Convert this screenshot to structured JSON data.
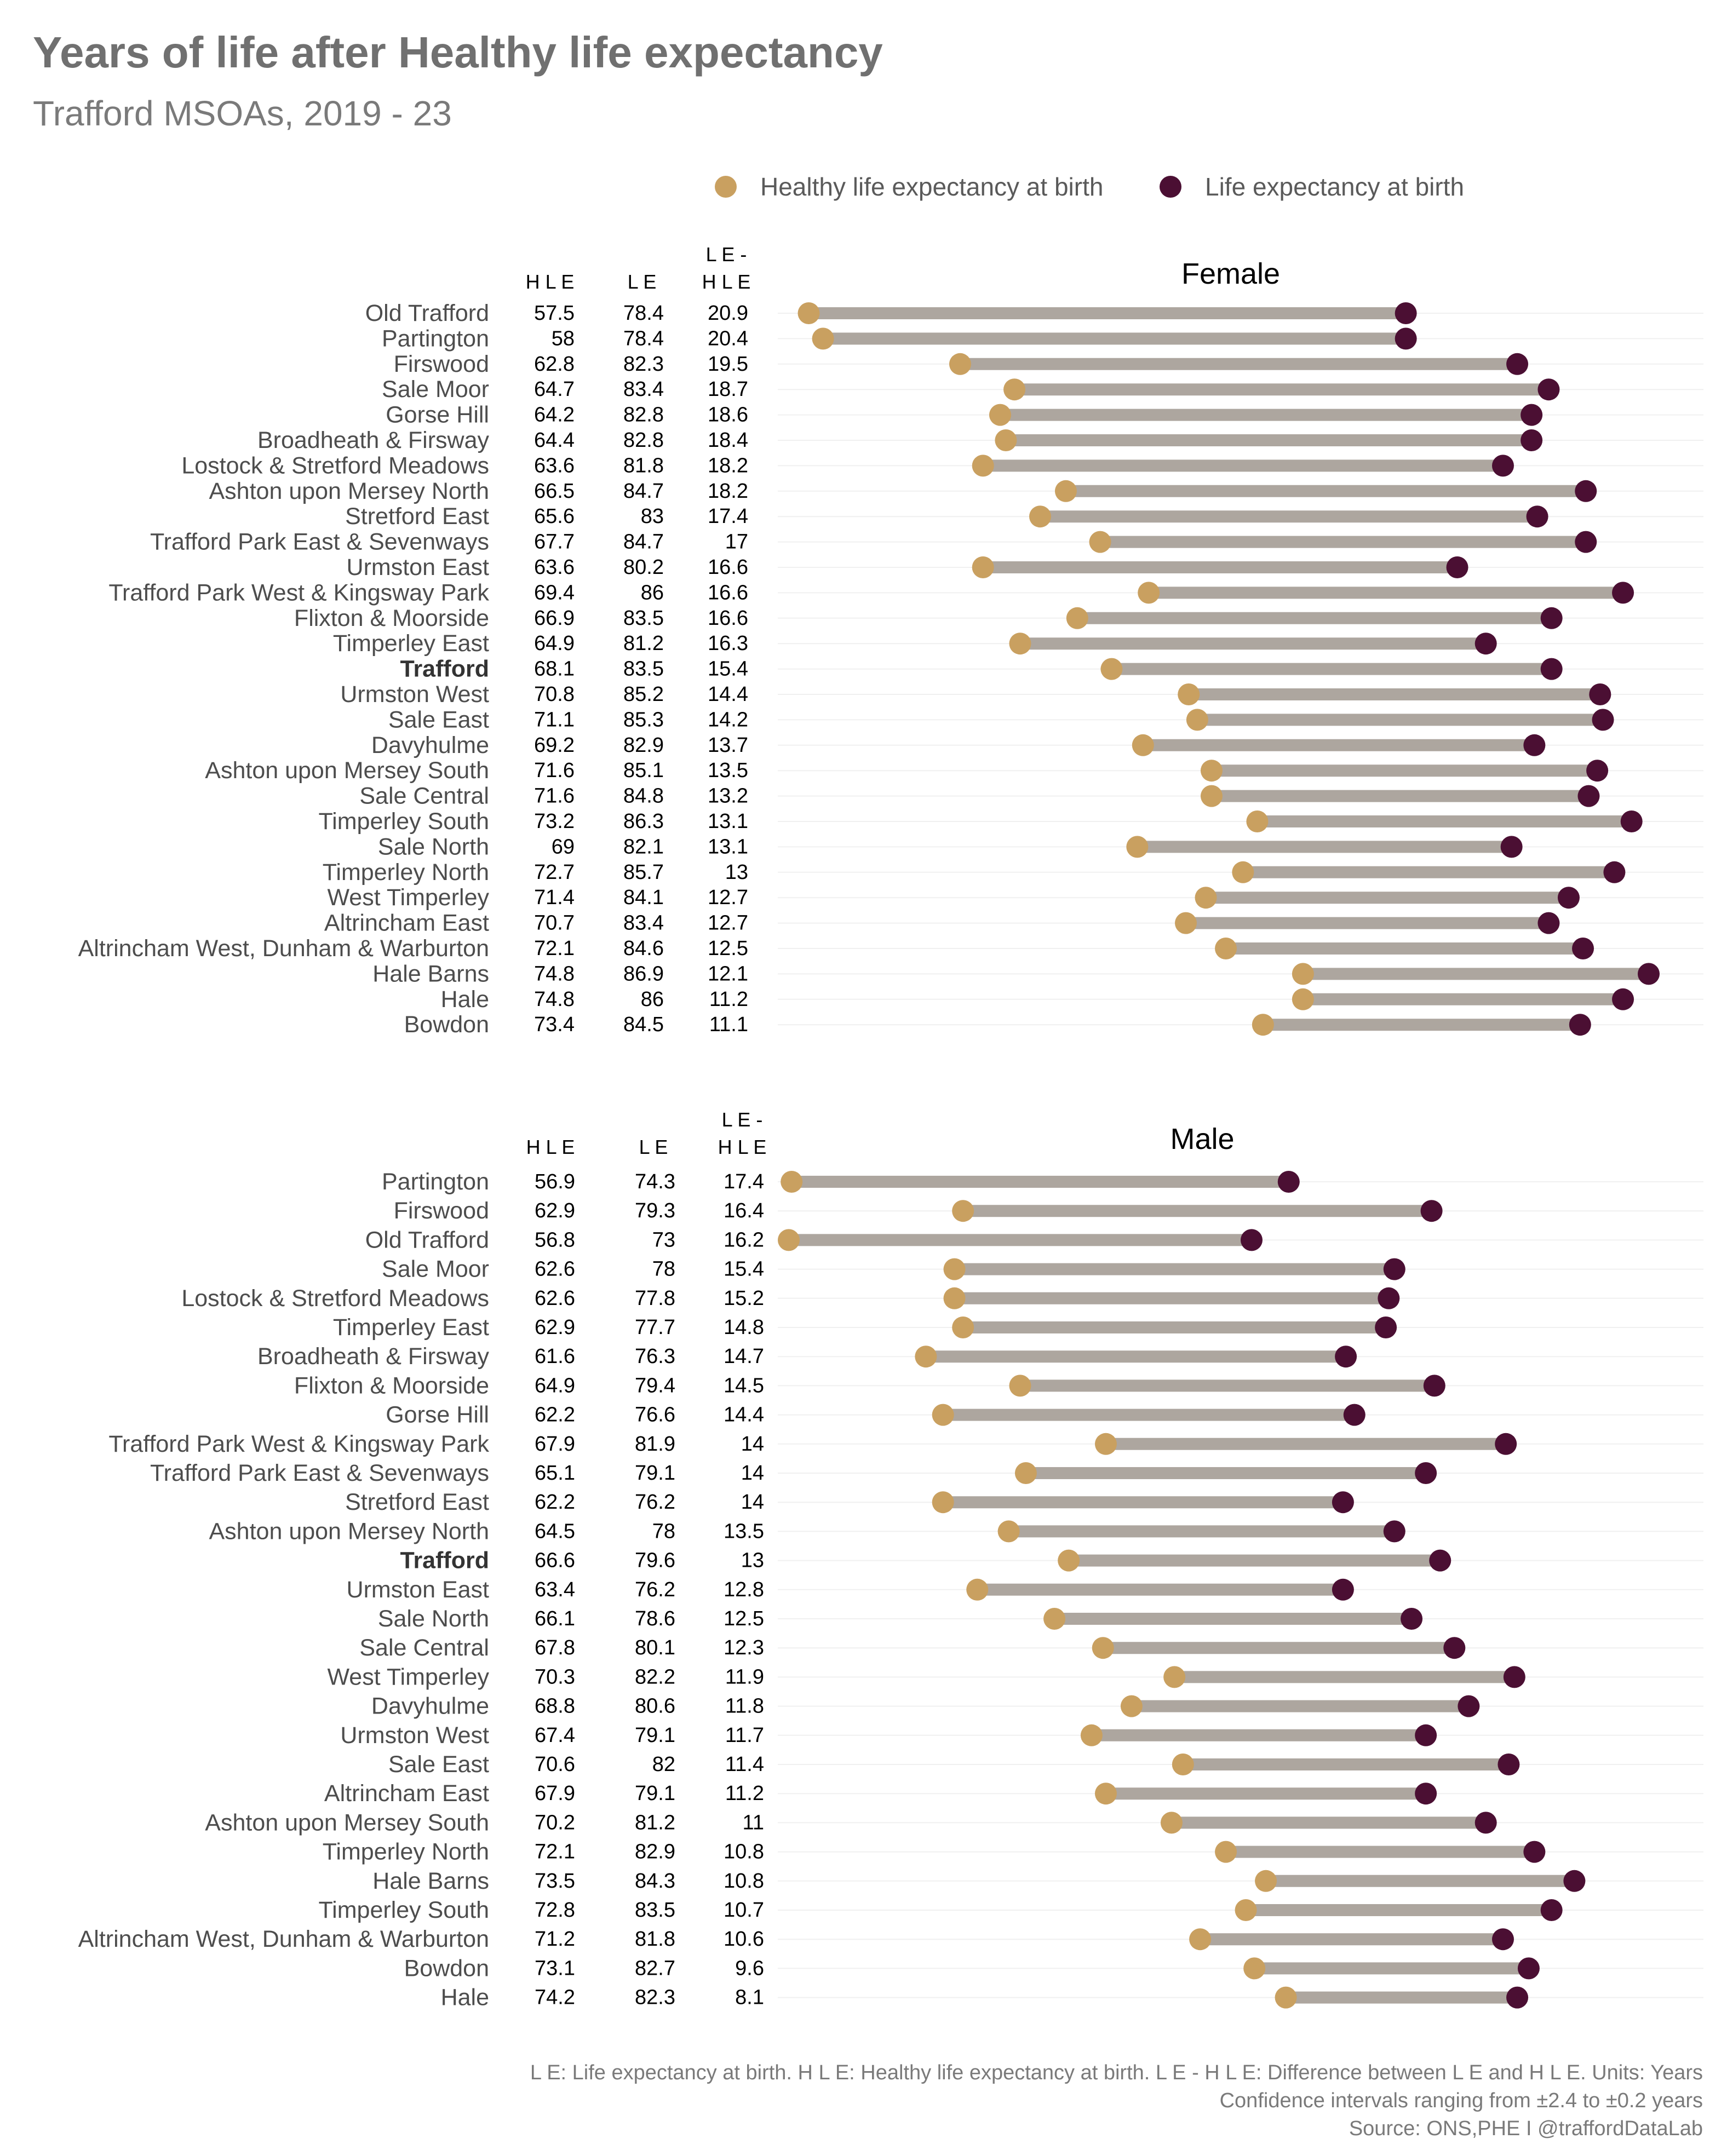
{
  "title": "Years of life after Healthy life expectancy",
  "subtitle": "Trafford MSOAs, 2019 - 23",
  "legend": {
    "placement": "top-right",
    "items": [
      {
        "label": "Healthy life expectancy at birth",
        "color": "#C9A060"
      },
      {
        "label": "Life expectancy at birth",
        "color": "#4B0F33"
      }
    ]
  },
  "column_headers": {
    "hle": "H L E",
    "le": "L E",
    "diff_top": "L E -",
    "diff_bottom": "H L E"
  },
  "caption": [
    "L E: Life expectancy at birth. H L E: Healthy life expectancy at birth. L E - H L E: Difference between L E and H L E. Units: Years",
    "Confidence intervals ranging from ±2.4 to ±0.2 years",
    "Source: ONS,PHE I @traffordDataLab"
  ],
  "colors": {
    "hle": "#C9A060",
    "le": "#4B0F33",
    "segment": "#ADA69F",
    "grid": "#F0F0F0",
    "label": "#4D4D4D"
  },
  "chart_data": [
    {
      "type": "dumbbell",
      "title": "Female",
      "grid": true,
      "rows": [
        {
          "name": "Old Trafford",
          "hle": 57.5,
          "le": 78.4,
          "diff": 20.9
        },
        {
          "name": "Partington",
          "hle": 58,
          "le": 78.4,
          "diff": 20.4
        },
        {
          "name": "Firswood",
          "hle": 62.8,
          "le": 82.3,
          "diff": 19.5
        },
        {
          "name": "Sale Moor",
          "hle": 64.7,
          "le": 83.4,
          "diff": 18.7
        },
        {
          "name": "Gorse Hill",
          "hle": 64.2,
          "le": 82.8,
          "diff": 18.6
        },
        {
          "name": "Broadheath & Firsway",
          "hle": 64.4,
          "le": 82.8,
          "diff": 18.4
        },
        {
          "name": "Lostock & Stretford Meadows",
          "hle": 63.6,
          "le": 81.8,
          "diff": 18.2
        },
        {
          "name": "Ashton upon Mersey North",
          "hle": 66.5,
          "le": 84.7,
          "diff": 18.2
        },
        {
          "name": "Stretford East",
          "hle": 65.6,
          "le": 83,
          "diff": 17.4
        },
        {
          "name": "Trafford Park East & Sevenways",
          "hle": 67.7,
          "le": 84.7,
          "diff": 17
        },
        {
          "name": "Urmston East",
          "hle": 63.6,
          "le": 80.2,
          "diff": 16.6
        },
        {
          "name": "Trafford Park West & Kingsway Park",
          "hle": 69.4,
          "le": 86,
          "diff": 16.6
        },
        {
          "name": "Flixton & Moorside",
          "hle": 66.9,
          "le": 83.5,
          "diff": 16.6
        },
        {
          "name": "Timperley East",
          "hle": 64.9,
          "le": 81.2,
          "diff": 16.3
        },
        {
          "name": "Trafford",
          "hle": 68.1,
          "le": 83.5,
          "diff": 15.4,
          "bold": true
        },
        {
          "name": "Urmston West",
          "hle": 70.8,
          "le": 85.2,
          "diff": 14.4
        },
        {
          "name": "Sale East",
          "hle": 71.1,
          "le": 85.3,
          "diff": 14.2
        },
        {
          "name": "Davyhulme",
          "hle": 69.2,
          "le": 82.9,
          "diff": 13.7
        },
        {
          "name": "Ashton upon Mersey South",
          "hle": 71.6,
          "le": 85.1,
          "diff": 13.5
        },
        {
          "name": "Sale Central",
          "hle": 71.6,
          "le": 84.8,
          "diff": 13.2
        },
        {
          "name": "Timperley South",
          "hle": 73.2,
          "le": 86.3,
          "diff": 13.1
        },
        {
          "name": "Sale North",
          "hle": 69,
          "le": 82.1,
          "diff": 13.1
        },
        {
          "name": "Timperley North",
          "hle": 72.7,
          "le": 85.7,
          "diff": 13
        },
        {
          "name": "West Timperley",
          "hle": 71.4,
          "le": 84.1,
          "diff": 12.7
        },
        {
          "name": "Altrincham East",
          "hle": 70.7,
          "le": 83.4,
          "diff": 12.7
        },
        {
          "name": "Altrincham West, Dunham & Warburton",
          "hle": 72.1,
          "le": 84.6,
          "diff": 12.5
        },
        {
          "name": "Hale Barns",
          "hle": 74.8,
          "le": 86.9,
          "diff": 12.1
        },
        {
          "name": "Hale",
          "hle": 74.8,
          "le": 86,
          "diff": 11.2
        },
        {
          "name": "Bowdon",
          "hle": 73.4,
          "le": 84.5,
          "diff": 11.1
        }
      ]
    },
    {
      "type": "dumbbell",
      "title": "Male",
      "grid": true,
      "rows": [
        {
          "name": "Partington",
          "hle": 56.9,
          "le": 74.3,
          "diff": 17.4
        },
        {
          "name": "Firswood",
          "hle": 62.9,
          "le": 79.3,
          "diff": 16.4
        },
        {
          "name": "Old Trafford",
          "hle": 56.8,
          "le": 73,
          "diff": 16.2
        },
        {
          "name": "Sale Moor",
          "hle": 62.6,
          "le": 78,
          "diff": 15.4
        },
        {
          "name": "Lostock & Stretford Meadows",
          "hle": 62.6,
          "le": 77.8,
          "diff": 15.2
        },
        {
          "name": "Timperley East",
          "hle": 62.9,
          "le": 77.7,
          "diff": 14.8
        },
        {
          "name": "Broadheath & Firsway",
          "hle": 61.6,
          "le": 76.3,
          "diff": 14.7
        },
        {
          "name": "Flixton & Moorside",
          "hle": 64.9,
          "le": 79.4,
          "diff": 14.5
        },
        {
          "name": "Gorse Hill",
          "hle": 62.2,
          "le": 76.6,
          "diff": 14.4
        },
        {
          "name": "Trafford Park West & Kingsway Park",
          "hle": 67.9,
          "le": 81.9,
          "diff": 14
        },
        {
          "name": "Trafford Park East & Sevenways",
          "hle": 65.1,
          "le": 79.1,
          "diff": 14
        },
        {
          "name": "Stretford East",
          "hle": 62.2,
          "le": 76.2,
          "diff": 14
        },
        {
          "name": "Ashton upon Mersey North",
          "hle": 64.5,
          "le": 78,
          "diff": 13.5
        },
        {
          "name": "Trafford",
          "hle": 66.6,
          "le": 79.6,
          "diff": 13,
          "bold": true
        },
        {
          "name": "Urmston East",
          "hle": 63.4,
          "le": 76.2,
          "diff": 12.8
        },
        {
          "name": "Sale North",
          "hle": 66.1,
          "le": 78.6,
          "diff": 12.5
        },
        {
          "name": "Sale Central",
          "hle": 67.8,
          "le": 80.1,
          "diff": 12.3
        },
        {
          "name": "West Timperley",
          "hle": 70.3,
          "le": 82.2,
          "diff": 11.9
        },
        {
          "name": "Davyhulme",
          "hle": 68.8,
          "le": 80.6,
          "diff": 11.8
        },
        {
          "name": "Urmston West",
          "hle": 67.4,
          "le": 79.1,
          "diff": 11.7
        },
        {
          "name": "Sale East",
          "hle": 70.6,
          "le": 82,
          "diff": 11.4
        },
        {
          "name": "Altrincham East",
          "hle": 67.9,
          "le": 79.1,
          "diff": 11.2
        },
        {
          "name": "Ashton upon Mersey South",
          "hle": 70.2,
          "le": 81.2,
          "diff": 11
        },
        {
          "name": "Timperley North",
          "hle": 72.1,
          "le": 82.9,
          "diff": 10.8
        },
        {
          "name": "Hale Barns",
          "hle": 73.5,
          "le": 84.3,
          "diff": 10.8
        },
        {
          "name": "Timperley South",
          "hle": 72.8,
          "le": 83.5,
          "diff": 10.7
        },
        {
          "name": "Altrincham West, Dunham & Warburton",
          "hle": 71.2,
          "le": 81.8,
          "diff": 10.6
        },
        {
          "name": "Bowdon",
          "hle": 73.1,
          "le": 82.7,
          "diff": 9.6
        },
        {
          "name": "Hale",
          "hle": 74.2,
          "le": 82.3,
          "diff": 8.1
        }
      ]
    }
  ]
}
